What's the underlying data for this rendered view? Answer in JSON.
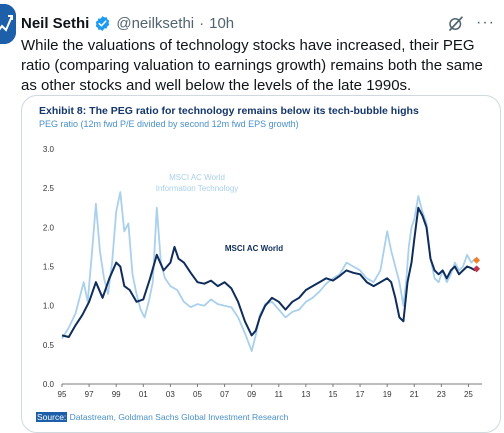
{
  "tweet": {
    "author_name": "Neil Sethi",
    "handle": "@neilksethi",
    "separator": "·",
    "time": "10h",
    "more": "···",
    "text": "While the valuations of technology stocks have increased, their PEG ratio (comparing valuation to earnings growth) remains both the same as other stocks and well below the levels of the late 1990s."
  },
  "icons": {
    "verified": "verified-badge-icon",
    "grok": "grok-icon",
    "more": "more-options-icon"
  },
  "colors": {
    "verified": "#1d9bf0",
    "it_series": "#a9d0ec",
    "world_series": "#0f2d5c",
    "marker_it": "#f07f2a",
    "marker_world": "#c2354b"
  },
  "chart_card": {
    "exhibit_title": "Exhibit 8: The PEG ratio for technology remains below its tech-bubble highs",
    "subtitle": "PEG ratio (12m fwd P/E divided by second 12m fwd EPS growth)",
    "source_label": "Source:",
    "source_text": " Datastream, Goldman Sachs Global Investment Research"
  },
  "chart_data": {
    "type": "line",
    "ylim": [
      0.0,
      3.0
    ],
    "xlim": [
      1995,
      2026
    ],
    "y_ticks": [
      "0.0",
      "0.5",
      "1.0",
      "1.5",
      "2.0",
      "2.5",
      "3.0"
    ],
    "x_ticks": [
      "95",
      "97",
      "99",
      "01",
      "03",
      "05",
      "07",
      "09",
      "11",
      "13",
      "15",
      "17",
      "19",
      "21",
      "23",
      "25"
    ],
    "grid": false,
    "annotations": [
      {
        "text": "MSCI AC World",
        "series": 0
      },
      {
        "text": "Information Technology",
        "series": 0
      },
      {
        "text": "MSCI AC World",
        "series": 1
      }
    ],
    "series": [
      {
        "name": "MSCI AC World Information Technology",
        "color": "#a9d0ec",
        "points": [
          [
            1995.0,
            0.58
          ],
          [
            1995.5,
            0.72
          ],
          [
            1996.0,
            0.9
          ],
          [
            1996.3,
            1.1
          ],
          [
            1996.6,
            1.3
          ],
          [
            1996.9,
            1.05
          ],
          [
            1997.2,
            1.65
          ],
          [
            1997.5,
            2.3
          ],
          [
            1997.8,
            1.7
          ],
          [
            1998.1,
            1.35
          ],
          [
            1998.4,
            1.15
          ],
          [
            1998.7,
            1.55
          ],
          [
            1999.0,
            2.2
          ],
          [
            1999.3,
            2.45
          ],
          [
            1999.6,
            1.95
          ],
          [
            1999.9,
            2.05
          ],
          [
            2000.2,
            1.4
          ],
          [
            2000.5,
            1.15
          ],
          [
            2000.8,
            0.95
          ],
          [
            2001.1,
            0.85
          ],
          [
            2001.4,
            1.05
          ],
          [
            2001.7,
            1.3
          ],
          [
            2002.0,
            2.25
          ],
          [
            2002.3,
            1.55
          ],
          [
            2002.6,
            1.35
          ],
          [
            2003.0,
            1.25
          ],
          [
            2003.5,
            1.2
          ],
          [
            2004.0,
            1.05
          ],
          [
            2004.5,
            0.98
          ],
          [
            2005.0,
            1.02
          ],
          [
            2005.5,
            1.0
          ],
          [
            2006.0,
            1.08
          ],
          [
            2006.5,
            1.02
          ],
          [
            2007.0,
            1.0
          ],
          [
            2007.5,
            0.98
          ],
          [
            2008.0,
            0.85
          ],
          [
            2008.5,
            0.65
          ],
          [
            2009.0,
            0.42
          ],
          [
            2009.3,
            0.62
          ],
          [
            2009.6,
            0.88
          ],
          [
            2010.0,
            1.02
          ],
          [
            2010.5,
            1.05
          ],
          [
            2011.0,
            0.95
          ],
          [
            2011.5,
            0.85
          ],
          [
            2012.0,
            0.92
          ],
          [
            2012.5,
            0.95
          ],
          [
            2013.0,
            1.05
          ],
          [
            2013.5,
            1.1
          ],
          [
            2014.0,
            1.18
          ],
          [
            2014.5,
            1.28
          ],
          [
            2015.0,
            1.35
          ],
          [
            2015.5,
            1.4
          ],
          [
            2016.0,
            1.55
          ],
          [
            2016.5,
            1.5
          ],
          [
            2017.0,
            1.45
          ],
          [
            2017.5,
            1.35
          ],
          [
            2018.0,
            1.3
          ],
          [
            2018.5,
            1.45
          ],
          [
            2019.0,
            1.95
          ],
          [
            2019.3,
            1.7
          ],
          [
            2019.6,
            1.5
          ],
          [
            2019.9,
            1.3
          ],
          [
            2020.2,
            1.0
          ],
          [
            2020.4,
            1.3
          ],
          [
            2020.6,
            1.75
          ],
          [
            2020.8,
            2.0
          ],
          [
            2021.0,
            2.1
          ],
          [
            2021.3,
            2.4
          ],
          [
            2021.6,
            2.2
          ],
          [
            2021.9,
            2.05
          ],
          [
            2022.2,
            1.6
          ],
          [
            2022.5,
            1.35
          ],
          [
            2022.8,
            1.3
          ],
          [
            2023.1,
            1.45
          ],
          [
            2023.4,
            1.3
          ],
          [
            2023.7,
            1.4
          ],
          [
            2024.0,
            1.55
          ],
          [
            2024.3,
            1.45
          ],
          [
            2024.6,
            1.5
          ],
          [
            2024.9,
            1.65
          ],
          [
            2025.2,
            1.55
          ],
          [
            2025.5,
            1.6
          ]
        ]
      },
      {
        "name": "MSCI AC World",
        "color": "#0f2d5c",
        "points": [
          [
            1995.0,
            0.62
          ],
          [
            1995.5,
            0.6
          ],
          [
            1996.0,
            0.75
          ],
          [
            1996.5,
            0.88
          ],
          [
            1997.0,
            1.05
          ],
          [
            1997.5,
            1.3
          ],
          [
            1998.0,
            1.1
          ],
          [
            1998.5,
            1.35
          ],
          [
            1999.0,
            1.55
          ],
          [
            1999.3,
            1.5
          ],
          [
            1999.6,
            1.25
          ],
          [
            2000.0,
            1.2
          ],
          [
            2000.5,
            1.05
          ],
          [
            2001.0,
            1.08
          ],
          [
            2001.5,
            1.35
          ],
          [
            2002.0,
            1.65
          ],
          [
            2002.5,
            1.45
          ],
          [
            2003.0,
            1.55
          ],
          [
            2003.3,
            1.75
          ],
          [
            2003.6,
            1.6
          ],
          [
            2004.0,
            1.55
          ],
          [
            2004.5,
            1.42
          ],
          [
            2005.0,
            1.3
          ],
          [
            2005.5,
            1.28
          ],
          [
            2006.0,
            1.32
          ],
          [
            2006.5,
            1.25
          ],
          [
            2007.0,
            1.3
          ],
          [
            2007.5,
            1.22
          ],
          [
            2008.0,
            1.05
          ],
          [
            2008.5,
            0.8
          ],
          [
            2009.0,
            0.62
          ],
          [
            2009.3,
            0.68
          ],
          [
            2009.6,
            0.85
          ],
          [
            2010.0,
            1.0
          ],
          [
            2010.5,
            1.1
          ],
          [
            2011.0,
            1.05
          ],
          [
            2011.5,
            0.95
          ],
          [
            2012.0,
            1.05
          ],
          [
            2012.5,
            1.1
          ],
          [
            2013.0,
            1.2
          ],
          [
            2013.5,
            1.25
          ],
          [
            2014.0,
            1.3
          ],
          [
            2014.5,
            1.35
          ],
          [
            2015.0,
            1.32
          ],
          [
            2015.5,
            1.38
          ],
          [
            2016.0,
            1.45
          ],
          [
            2016.5,
            1.42
          ],
          [
            2017.0,
            1.4
          ],
          [
            2017.5,
            1.3
          ],
          [
            2018.0,
            1.25
          ],
          [
            2018.5,
            1.3
          ],
          [
            2019.0,
            1.35
          ],
          [
            2019.3,
            1.3
          ],
          [
            2019.6,
            1.1
          ],
          [
            2019.9,
            0.85
          ],
          [
            2020.2,
            0.8
          ],
          [
            2020.5,
            1.3
          ],
          [
            2020.8,
            1.55
          ],
          [
            2021.0,
            1.85
          ],
          [
            2021.3,
            2.25
          ],
          [
            2021.6,
            2.15
          ],
          [
            2021.9,
            2.0
          ],
          [
            2022.2,
            1.6
          ],
          [
            2022.5,
            1.45
          ],
          [
            2022.8,
            1.4
          ],
          [
            2023.1,
            1.45
          ],
          [
            2023.4,
            1.35
          ],
          [
            2023.7,
            1.45
          ],
          [
            2024.0,
            1.5
          ],
          [
            2024.3,
            1.4
          ],
          [
            2024.6,
            1.45
          ],
          [
            2024.9,
            1.5
          ],
          [
            2025.2,
            1.48
          ],
          [
            2025.5,
            1.45
          ]
        ]
      }
    ],
    "end_markers": [
      {
        "series": 0,
        "x": 2025.6,
        "y": 1.58
      },
      {
        "series": 1,
        "x": 2025.6,
        "y": 1.47
      }
    ]
  }
}
